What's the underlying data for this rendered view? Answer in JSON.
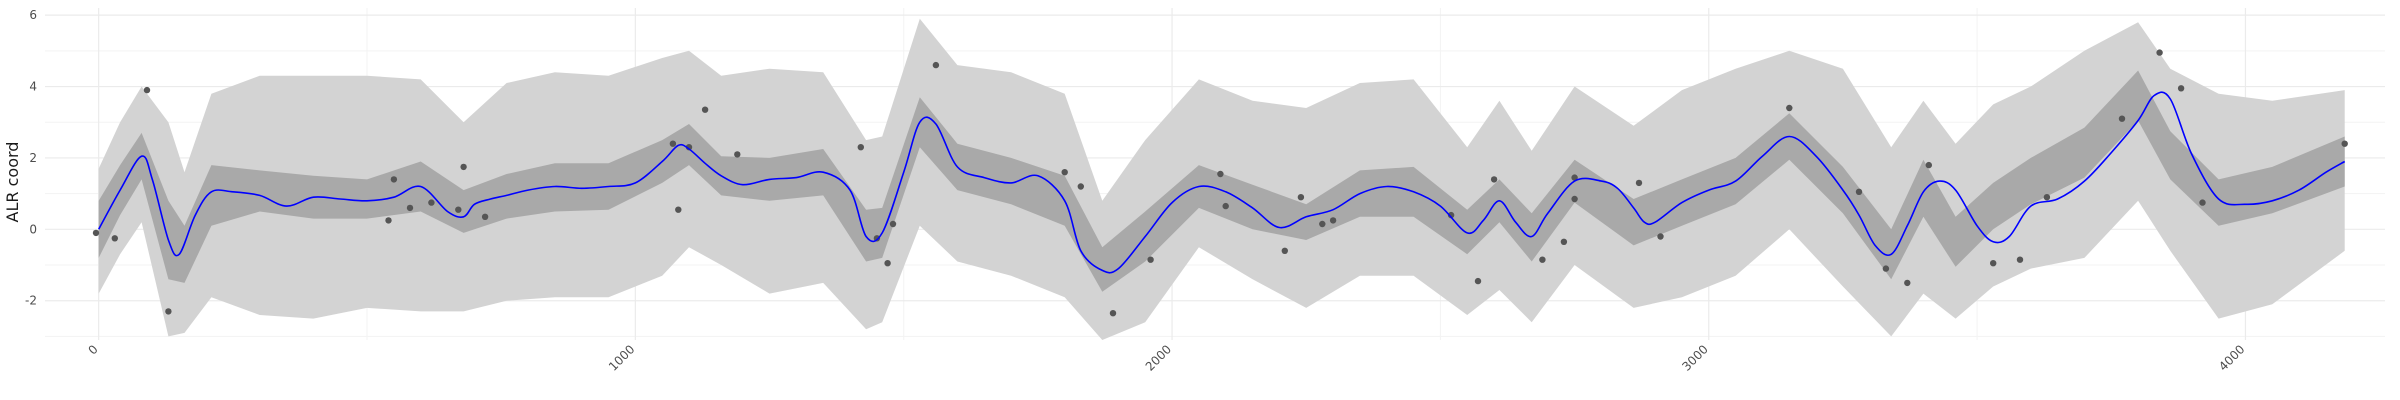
{
  "chart_data": {
    "type": "line",
    "title": "",
    "xlabel": "",
    "ylabel": "ALR coord",
    "xlim": [
      -100,
      4260
    ],
    "ylim": [
      -3.1,
      6.2
    ],
    "x_ticks": [
      0,
      1000,
      2000,
      3000,
      4000
    ],
    "x_tick_labels": [
      "0",
      "1000",
      "2000",
      "3000",
      "4000"
    ],
    "y_ticks": [
      -2,
      0,
      2,
      4,
      6
    ],
    "y_tick_labels": [
      "-2",
      "0",
      "2",
      "4",
      "6"
    ],
    "grid": true,
    "legend": "none",
    "colors": {
      "mean_line": "#0000ff",
      "inner_band": "#a9a9a9",
      "outer_band": "#d3d3d3",
      "points": "#555555",
      "grid": "#ebebeb"
    },
    "mean": {
      "x": [
        0,
        40,
        80,
        100,
        130,
        150,
        180,
        210,
        250,
        300,
        350,
        400,
        450,
        500,
        550,
        600,
        650,
        680,
        700,
        730,
        760,
        800,
        850,
        900,
        950,
        1000,
        1050,
        1080,
        1100,
        1130,
        1160,
        1200,
        1250,
        1300,
        1350,
        1400,
        1430,
        1460,
        1500,
        1530,
        1560,
        1600,
        1650,
        1700,
        1750,
        1800,
        1830,
        1870,
        1900,
        1950,
        2000,
        2050,
        2100,
        2150,
        2200,
        2250,
        2300,
        2350,
        2400,
        2450,
        2500,
        2550,
        2580,
        2610,
        2640,
        2670,
        2700,
        2750,
        2800,
        2830,
        2860,
        2880,
        2900,
        2950,
        3000,
        3050,
        3100,
        3150,
        3200,
        3250,
        3280,
        3310,
        3340,
        3370,
        3400,
        3430,
        3460,
        3500,
        3530,
        3560,
        3600,
        3650,
        3700,
        3750,
        3800,
        3830,
        3860,
        3900,
        3950,
        4000,
        4050,
        4100,
        4150,
        4185
      ],
      "y": [
        0,
        1.1,
        2.05,
        1.4,
        -0.3,
        -0.7,
        0.4,
        1.05,
        1.05,
        0.95,
        0.65,
        0.9,
        0.85,
        0.8,
        0.9,
        1.2,
        0.5,
        0.35,
        0.7,
        0.85,
        0.95,
        1.1,
        1.2,
        1.15,
        1.2,
        1.3,
        1.9,
        2.35,
        2.25,
        1.85,
        1.5,
        1.25,
        1.4,
        1.45,
        1.6,
        1.1,
        -0.2,
        -0.1,
        1.6,
        3.0,
        2.95,
        1.75,
        1.45,
        1.3,
        1.5,
        0.8,
        -0.6,
        -1.15,
        -1.1,
        -0.2,
        0.75,
        1.2,
        1.05,
        0.6,
        0.05,
        0.35,
        0.55,
        1.0,
        1.2,
        1.05,
        0.65,
        -0.1,
        0.25,
        0.8,
        0.2,
        -0.2,
        0.45,
        1.35,
        1.35,
        1.15,
        0.6,
        0.2,
        0.2,
        0.75,
        1.1,
        1.35,
        2.05,
        2.6,
        2.05,
        1.1,
        0.4,
        -0.45,
        -0.7,
        0.1,
        1.05,
        1.35,
        1.1,
        0.1,
        -0.35,
        -0.2,
        0.65,
        0.85,
        1.35,
        2.15,
        3.05,
        3.75,
        3.65,
        2.1,
        0.85,
        0.7,
        0.8,
        1.1,
        1.6,
        1.9
      ]
    },
    "inner_band": {
      "x": [
        0,
        40,
        80,
        130,
        160,
        210,
        300,
        400,
        500,
        600,
        680,
        760,
        850,
        950,
        1050,
        1100,
        1160,
        1250,
        1350,
        1430,
        1460,
        1530,
        1600,
        1700,
        1800,
        1870,
        1950,
        2050,
        2150,
        2250,
        2350,
        2450,
        2550,
        2610,
        2670,
        2750,
        2860,
        2950,
        3050,
        3150,
        3250,
        3340,
        3400,
        3460,
        3530,
        3600,
        3700,
        3800,
        3860,
        3950,
        4050,
        4185
      ],
      "lower": [
        -0.8,
        0.4,
        1.4,
        -1.4,
        -1.5,
        0.1,
        0.5,
        0.3,
        0.3,
        0.5,
        -0.1,
        0.3,
        0.5,
        0.55,
        1.3,
        1.8,
        0.95,
        0.8,
        0.95,
        -0.9,
        -0.8,
        2.3,
        1.1,
        0.7,
        0.1,
        -1.75,
        -0.9,
        0.6,
        0.0,
        -0.3,
        0.35,
        0.35,
        -0.7,
        0.2,
        -0.9,
        0.75,
        -0.45,
        0.1,
        0.7,
        1.95,
        0.45,
        -1.4,
        0.35,
        -1.05,
        0.0,
        0.7,
        1.45,
        3.05,
        1.4,
        0.1,
        0.45,
        1.2
      ],
      "upper": [
        0.8,
        1.8,
        2.7,
        0.8,
        0.1,
        1.8,
        1.65,
        1.5,
        1.4,
        1.9,
        1.1,
        1.55,
        1.85,
        1.85,
        2.5,
        2.95,
        2.05,
        2.0,
        2.25,
        0.55,
        0.6,
        3.7,
        2.4,
        2.0,
        1.5,
        -0.5,
        0.5,
        1.8,
        1.25,
        0.7,
        1.65,
        1.75,
        0.55,
        1.4,
        0.45,
        1.95,
        0.85,
        1.4,
        2.0,
        3.25,
        1.75,
        0.0,
        1.95,
        0.35,
        1.3,
        2.0,
        2.85,
        4.45,
        2.75,
        1.4,
        1.75,
        2.6
      ]
    },
    "outer_band": {
      "x": [
        0,
        40,
        80,
        130,
        160,
        210,
        300,
        400,
        500,
        600,
        680,
        760,
        850,
        950,
        1050,
        1100,
        1160,
        1250,
        1350,
        1430,
        1460,
        1530,
        1600,
        1700,
        1800,
        1870,
        1950,
        2050,
        2150,
        2250,
        2350,
        2450,
        2550,
        2610,
        2670,
        2750,
        2860,
        2950,
        3050,
        3150,
        3250,
        3340,
        3400,
        3460,
        3530,
        3600,
        3700,
        3800,
        3860,
        3950,
        4050,
        4185
      ],
      "lower": [
        -1.8,
        -0.7,
        0.2,
        -3.0,
        -2.9,
        -1.9,
        -2.4,
        -2.5,
        -2.2,
        -2.3,
        -2.3,
        -2.0,
        -1.9,
        -1.9,
        -1.3,
        -0.5,
        -1.0,
        -1.8,
        -1.5,
        -2.8,
        -2.6,
        0.1,
        -0.9,
        -1.3,
        -1.9,
        -3.1,
        -2.6,
        -0.5,
        -1.4,
        -2.2,
        -1.3,
        -1.3,
        -2.4,
        -1.7,
        -2.6,
        -1.0,
        -2.2,
        -1.9,
        -1.3,
        0.0,
        -1.6,
        -3.0,
        -1.8,
        -2.5,
        -1.6,
        -1.1,
        -0.8,
        0.8,
        -0.6,
        -2.5,
        -2.1,
        -0.6
      ],
      "upper": [
        1.7,
        3.0,
        4.0,
        3.0,
        1.6,
        3.8,
        4.3,
        4.3,
        4.3,
        4.2,
        3.0,
        4.1,
        4.4,
        4.3,
        4.8,
        5.0,
        4.3,
        4.5,
        4.4,
        2.5,
        2.6,
        5.9,
        4.6,
        4.4,
        3.8,
        0.8,
        2.5,
        4.2,
        3.6,
        3.4,
        4.1,
        4.2,
        2.3,
        3.6,
        2.2,
        4.0,
        2.9,
        3.9,
        4.5,
        5.0,
        4.5,
        2.3,
        3.6,
        2.4,
        3.5,
        4.0,
        5.0,
        5.8,
        4.5,
        3.8,
        3.6,
        3.9
      ]
    },
    "points": {
      "x": [
        -5,
        30,
        90,
        130,
        540,
        550,
        580,
        620,
        670,
        680,
        720,
        1070,
        1080,
        1100,
        1130,
        1190,
        1420,
        1450,
        1470,
        1480,
        1560,
        1800,
        1830,
        1890,
        1960,
        2090,
        2100,
        2210,
        2240,
        2280,
        2300,
        2520,
        2570,
        2600,
        2690,
        2730,
        2750,
        2750,
        2870,
        2910,
        3150,
        3280,
        3330,
        3370,
        3410,
        3530,
        3580,
        3630,
        3770,
        3840,
        3880,
        3920,
        4185
      ],
      "y": [
        -0.1,
        -0.25,
        3.9,
        -2.3,
        0.25,
        1.4,
        0.6,
        0.75,
        0.55,
        1.75,
        0.35,
        2.4,
        0.55,
        2.3,
        3.35,
        2.1,
        2.3,
        -0.25,
        -0.95,
        0.15,
        4.6,
        1.6,
        1.2,
        -2.35,
        -0.85,
        1.55,
        0.65,
        -0.6,
        0.9,
        0.15,
        0.25,
        0.4,
        -1.45,
        1.4,
        -0.85,
        -0.35,
        0.85,
        1.45,
        1.3,
        -0.2,
        3.4,
        1.05,
        -1.1,
        -1.5,
        1.8,
        -0.95,
        -0.85,
        0.9,
        3.1,
        4.95,
        3.95,
        0.75,
        2.4
      ]
    }
  }
}
